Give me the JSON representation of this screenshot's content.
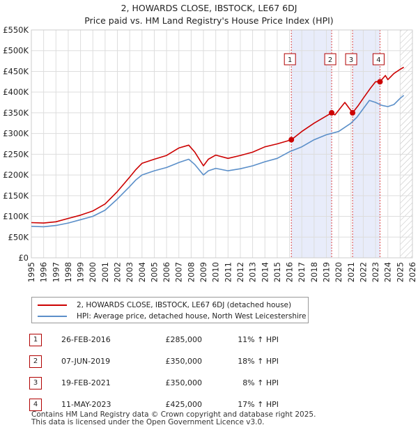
{
  "title_line1": "2, HOWARDS CLOSE, IBSTOCK, LE67 6DJ",
  "title_line2": "Price paid vs. HM Land Registry's House Price Index (HPI)",
  "legend": {
    "property": "2, HOWARDS CLOSE, IBSTOCK, LE67 6DJ (detached house)",
    "hpi": "HPI: Average price, detached house, North West Leicestershire"
  },
  "colors": {
    "property": "#cc0000",
    "hpi": "#5b8fc9",
    "shade": "#e8ecfa",
    "badge": "#b00000"
  },
  "transactions": [
    {
      "num": "1",
      "date": "26-FEB-2016",
      "price": "£285,000",
      "hpi": "11% ↑ HPI"
    },
    {
      "num": "2",
      "date": "07-JUN-2019",
      "price": "£350,000",
      "hpi": "18% ↑ HPI"
    },
    {
      "num": "3",
      "date": "19-FEB-2021",
      "price": "£350,000",
      "hpi": "8% ↑ HPI"
    },
    {
      "num": "4",
      "date": "11-MAY-2023",
      "price": "£425,000",
      "hpi": "17% ↑ HPI"
    }
  ],
  "footer_line1": "Contains HM Land Registry data © Crown copyright and database right 2025.",
  "footer_line2": "This data is licensed under the Open Government Licence v3.0.",
  "chart_data": {
    "type": "line",
    "title": "2, HOWARDS CLOSE, IBSTOCK, LE67 6DJ",
    "subtitle": "Price paid vs. HM Land Registry's House Price Index (HPI)",
    "xlim": [
      1995,
      2026
    ],
    "ylim": [
      0,
      550000
    ],
    "yticks": [
      0,
      50000,
      100000,
      150000,
      200000,
      250000,
      300000,
      350000,
      400000,
      450000,
      500000,
      550000
    ],
    "ytick_labels": [
      "£0",
      "£50K",
      "£100K",
      "£150K",
      "£200K",
      "£250K",
      "£300K",
      "£350K",
      "£400K",
      "£450K",
      "£500K",
      "£550K"
    ],
    "xticks": [
      1995,
      1996,
      1997,
      1998,
      1999,
      2000,
      2001,
      2002,
      2003,
      2004,
      2005,
      2006,
      2007,
      2008,
      2009,
      2010,
      2011,
      2012,
      2013,
      2014,
      2015,
      2016,
      2017,
      2018,
      2019,
      2020,
      2021,
      2022,
      2023,
      2024,
      2025,
      2026
    ],
    "grid": true,
    "shaded_ranges": [
      [
        2016.15,
        2019.43
      ],
      [
        2021.13,
        2023.36
      ]
    ],
    "future_from": 2025.0,
    "series": [
      {
        "name": "2, HOWARDS CLOSE, IBSTOCK, LE67 6DJ (detached house)",
        "x": [
          1995.0,
          1996.0,
          1997.0,
          1998.0,
          1999.0,
          2000.0,
          2001.0,
          2002.0,
          2003.0,
          2003.5,
          2004.0,
          2005.0,
          2006.0,
          2007.0,
          2007.8,
          2008.3,
          2009.0,
          2009.4,
          2010.0,
          2011.0,
          2012.0,
          2013.0,
          2014.0,
          2015.0,
          2016.15,
          2017.0,
          2018.0,
          2019.43,
          2019.7,
          2020.5,
          2021.13,
          2021.6,
          2022.0,
          2022.6,
          2023.0,
          2023.36,
          2023.8,
          2024.0,
          2024.5,
          2025.0,
          2025.3
        ],
        "values": [
          85000,
          84000,
          87000,
          95000,
          103000,
          113000,
          130000,
          160000,
          195000,
          213000,
          228000,
          238000,
          247000,
          265000,
          272000,
          255000,
          222000,
          238000,
          248000,
          240000,
          247000,
          255000,
          268000,
          275000,
          285000,
          305000,
          325000,
          350000,
          345000,
          375000,
          350000,
          368000,
          385000,
          410000,
          425000,
          425000,
          440000,
          430000,
          445000,
          455000,
          460000
        ]
      },
      {
        "name": "HPI: Average price, detached house, North West Leicestershire",
        "x": [
          1995.0,
          1996.0,
          1997.0,
          1998.0,
          1999.0,
          2000.0,
          2001.0,
          2002.0,
          2003.0,
          2003.5,
          2004.0,
          2005.0,
          2006.0,
          2007.0,
          2007.8,
          2008.3,
          2009.0,
          2009.4,
          2010.0,
          2011.0,
          2012.0,
          2013.0,
          2014.0,
          2015.0,
          2016.0,
          2017.0,
          2018.0,
          2019.0,
          2020.0,
          2021.0,
          2021.5,
          2022.0,
          2022.5,
          2023.0,
          2023.5,
          2024.0,
          2024.5,
          2025.0,
          2025.3
        ],
        "values": [
          76000,
          75000,
          78000,
          84000,
          92000,
          100000,
          115000,
          142000,
          172000,
          188000,
          200000,
          210000,
          218000,
          230000,
          238000,
          225000,
          200000,
          210000,
          216000,
          210000,
          215000,
          222000,
          232000,
          240000,
          256000,
          268000,
          285000,
          297000,
          305000,
          325000,
          340000,
          360000,
          380000,
          375000,
          368000,
          365000,
          370000,
          385000,
          392000
        ]
      }
    ],
    "sale_points": [
      {
        "label": "1",
        "x": 2016.15,
        "y": 285000
      },
      {
        "label": "2",
        "x": 2019.43,
        "y": 350000
      },
      {
        "label": "3",
        "x": 2021.13,
        "y": 350000
      },
      {
        "label": "4",
        "x": 2023.36,
        "y": 425000
      }
    ]
  }
}
